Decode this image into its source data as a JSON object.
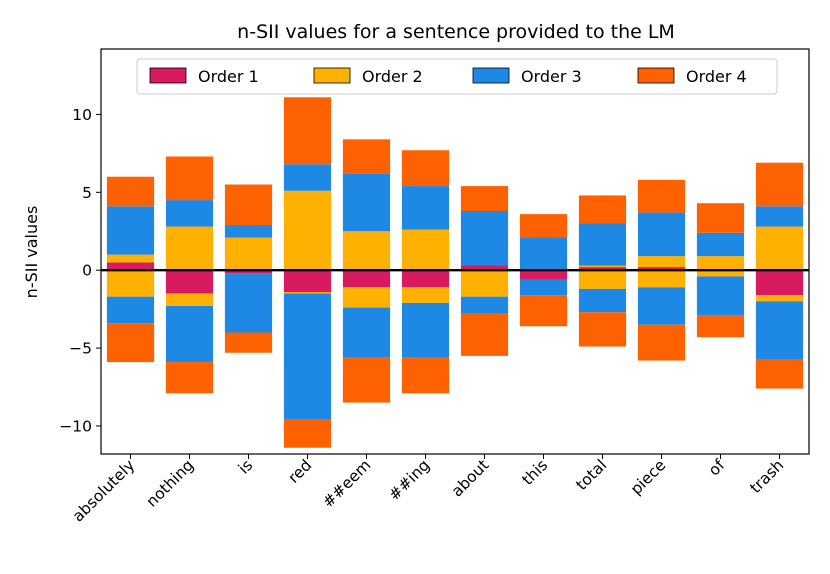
{
  "chart_data": {
    "type": "bar",
    "stacked": true,
    "title": "n-SII values for a sentence provided to the LM",
    "xlabel": "",
    "ylabel": "n-SII values",
    "ylim": [
      -11.8,
      14.2
    ],
    "yticks": [
      -10,
      -5,
      0,
      5,
      10
    ],
    "ytick_labels": [
      "−10",
      "−5",
      "0",
      "5",
      "10"
    ],
    "legend_position": "top-center",
    "categories": [
      "absolutely",
      "nothing",
      "is",
      "red",
      "##eem",
      "##ing",
      "about",
      "this",
      "total",
      "piece",
      "of",
      "trash"
    ],
    "series": [
      {
        "name": "Order 1",
        "color": "#d81b60",
        "pos": [
          0.5,
          0.0,
          0.0,
          0.0,
          0.0,
          0.0,
          0.3,
          0.0,
          0.2,
          0.2,
          0.0,
          0.0
        ],
        "neg": [
          0.0,
          -1.5,
          -0.2,
          -1.4,
          -1.1,
          -1.1,
          0.0,
          -0.6,
          0.0,
          0.0,
          0.0,
          -1.6
        ]
      },
      {
        "name": "Order 2",
        "color": "#ffb000",
        "pos": [
          0.5,
          2.8,
          2.1,
          5.1,
          2.5,
          2.6,
          0.0,
          0.0,
          0.1,
          0.7,
          0.9,
          2.8
        ],
        "neg": [
          -1.7,
          -0.8,
          0.0,
          -0.1,
          -1.3,
          -1.0,
          -1.7,
          0.0,
          -1.2,
          -1.1,
          -0.4,
          -0.4
        ]
      },
      {
        "name": "Order 3",
        "color": "#1e88e5",
        "pos": [
          3.1,
          1.7,
          0.8,
          1.7,
          3.7,
          2.8,
          3.5,
          2.1,
          2.7,
          2.8,
          1.5,
          1.3
        ],
        "neg": [
          -1.7,
          -3.6,
          -3.8,
          -8.1,
          -3.2,
          -3.5,
          -1.1,
          -1.0,
          -1.5,
          -2.4,
          -2.5,
          -3.7
        ]
      },
      {
        "name": "Order 4",
        "color": "#fe6100",
        "pos": [
          1.9,
          2.8,
          2.6,
          4.3,
          2.2,
          2.3,
          1.6,
          1.5,
          1.8,
          2.1,
          1.9,
          2.8
        ],
        "neg": [
          -2.5,
          -2.0,
          -1.3,
          -1.8,
          -2.9,
          -2.3,
          -2.7,
          -2.0,
          -2.2,
          -2.3,
          -1.4,
          -1.9
        ]
      }
    ]
  }
}
